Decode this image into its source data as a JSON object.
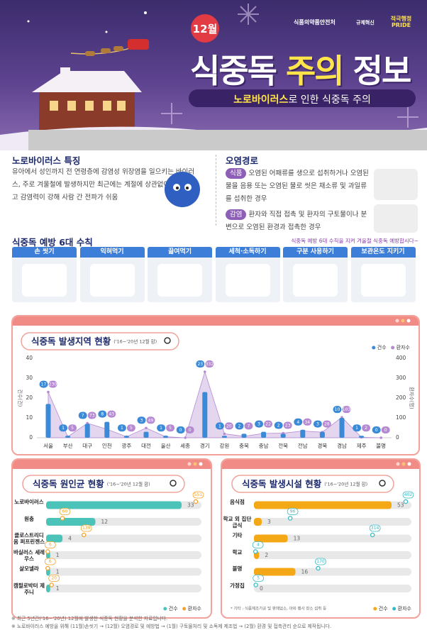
{
  "header": {
    "agency": "식품의약품안전처",
    "logos": [
      "규제혁신",
      "적극행정 PRIDE"
    ],
    "month": "12월",
    "title": [
      "식중독",
      "주의",
      "정보"
    ],
    "subtitle": [
      "노로바이러스",
      "로 인한 식중독 주의"
    ]
  },
  "features": {
    "heading": "노로바이러스 특징",
    "text": "유아에서 성인까지 전 연령층에 감염성 위장염을 일으키는 바이러스, 주로 겨울철에 발생하지만 최근에는 계절에 상관없이 발생하고 감염력이 강해 사람 간 전파가 쉬움"
  },
  "routes": {
    "heading": "오염경로",
    "items": [
      {
        "tag": "식품",
        "text": "오염된 어패류를 생으로 섭취하거나 오염된 물을 음용 또는 오염된 물로 씻은 채소류 및 과일류를 섭취한 경우"
      },
      {
        "tag": "감염",
        "text": "환자와 직접 접촉 및 환자의 구토물이나 분변으로 오염된 환경과 접촉한 경우"
      }
    ]
  },
  "rules": {
    "heading": "식중독 예방 6대 수칙",
    "slogan": "식중독 예방 6대 수칙을 지켜 겨울철 식중독 예방합시다~",
    "items": [
      "손 씻기",
      "익혀먹기",
      "끓여먹기",
      "세척·소독하기",
      "구분 사용하기",
      "보관온도 지키기"
    ]
  },
  "chart_data": [
    {
      "type": "bar",
      "title": "식중독 발생지역 현황",
      "subtitle": "('16~'20년 12월 합)",
      "ylabel": "건수(건)",
      "y2label": "환자수(명)",
      "categories": [
        "서울",
        "부산",
        "대구",
        "인천",
        "광주",
        "대전",
        "울산",
        "세종",
        "경기",
        "강원",
        "충북",
        "충남",
        "전북",
        "전남",
        "경북",
        "경남",
        "제주",
        "불명"
      ],
      "series": [
        {
          "name": "건수",
          "type": "bar",
          "color": "#3a8ad8",
          "values": [
            17,
            1,
            7,
            8,
            1,
            3,
            1,
            0,
            23,
            1,
            2,
            3,
            2,
            4,
            3,
            10,
            1,
            0
          ]
        },
        {
          "name": "환자수",
          "type": "area",
          "axis": "y2",
          "color": "#b58ad2",
          "values": [
            230,
            5,
            73,
            43,
            5,
            49,
            5,
            0,
            332,
            20,
            7,
            22,
            23,
            34,
            28,
            103,
            2,
            0
          ]
        }
      ],
      "ylim": [
        0,
        40
      ],
      "yticks": [
        0,
        10,
        20,
        30,
        40
      ],
      "y2lim": [
        0,
        400
      ],
      "y2ticks": [
        0,
        100,
        200,
        300,
        400
      ],
      "legend": "top-right"
    },
    {
      "type": "hbar",
      "title": "식중독 원인균 현황",
      "subtitle": "('16~'20년 12월 합)",
      "categories": [
        "노로바이러스",
        "원충",
        "클로스트리디움 퍼프린젠스",
        "바실러스 세레우스",
        "살모넬라",
        "캠필로박터 제주니"
      ],
      "series": [
        {
          "name": "건수",
          "type": "bar",
          "color": "#4cc3b8",
          "values": [
            33,
            12,
            4,
            1,
            1,
            1
          ]
        },
        {
          "name": "환자수",
          "type": "dot",
          "color": "#f2a22a",
          "values": [
            551,
            60,
            139,
            6,
            6,
            20
          ]
        }
      ],
      "legend": "bottom-right"
    },
    {
      "type": "hbar",
      "title": "식중독 발생시설 현황",
      "subtitle": "('16~'20년 12월 합)",
      "categories": [
        "음식점",
        "학교 외 집단급식",
        "기타",
        "학교",
        "불명",
        "가정집"
      ],
      "series": [
        {
          "name": "건수",
          "type": "bar",
          "color": "#f5a816",
          "values": [
            53,
            3,
            13,
            2,
            16,
            0
          ]
        },
        {
          "name": "환자수",
          "type": "dot",
          "color": "#35b9c6",
          "values": [
            402,
            96,
            314,
            4,
            170,
            5
          ]
        }
      ],
      "note": "* 기타 : 식품제조가공 및 판매업소, 야외·행사 장소 섭취 등",
      "legend": "bottom-right"
    }
  ],
  "footnotes": [
    "※ 최근 5년간('16~'20년) 12월에 발생한 식중독 현황을 분석한 자료입니다.",
    "※ 노로바이러스 예방을 위해 (11월)손씻기 → (12월) 오염경로 및 예방법 → (1월) 구토물처리 및 소독제 제조법 → (2월) 환경 및 접촉관리 순으로 제작됩니다."
  ]
}
